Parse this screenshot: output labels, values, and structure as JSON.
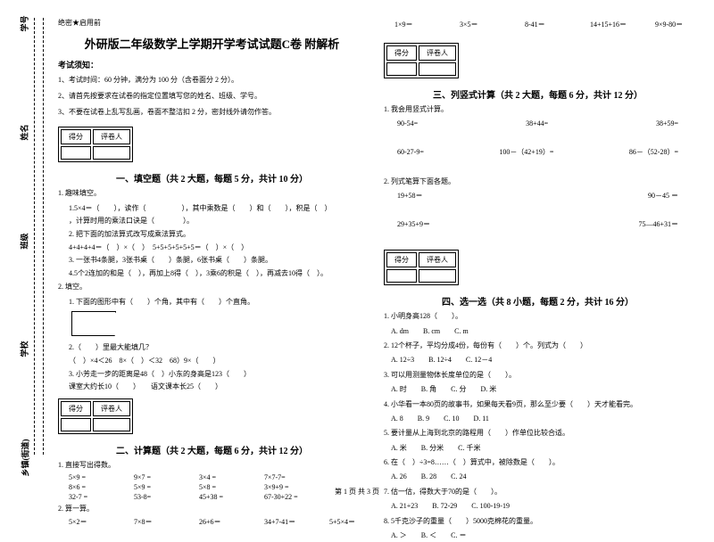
{
  "margin": {
    "labels": [
      "学号",
      "姓名",
      "班级",
      "学校",
      "乡镇(街道)"
    ],
    "side_chars": [
      "题",
      "答",
      "内",
      "线",
      "封"
    ]
  },
  "header": {
    "confidential": "绝密★启用前",
    "title": "外研版二年级数学上学期开学考试试题C卷 附解析",
    "notice_title": "考试须知：",
    "notices": [
      "1、考试时间：60 分钟，满分为 100 分（含卷面分 2 分）。",
      "2、请首先按要求在试卷的指定位置填写您的姓名、班级、学号。",
      "3、不要在试卷上乱写乱画，卷面不整洁扣 2 分，密封线外请勿作答。"
    ]
  },
  "scorebox": {
    "col1": "得分",
    "col2": "评卷人"
  },
  "section1": {
    "heading": "一、填空题（共 2 大题，每题 5 分，共计 10 分）",
    "q1": "1. 趣味填空。",
    "q1_lines": [
      "1.5×4＝（　　），读作（　　　　　），其中乘数是（　　）和（　　），积是（　）",
      "，计算时用的乘法口诀是（　　　　）。",
      "2. 把下面的加法算式改写成乘法算式。",
      "4+4+4+4＝（　）×（　）　5+5+5+5+5+5＝（　）×（　）",
      "3. 一张书4条腿，3张书桌（　　）条腿，6张书桌（　　）条腿。",
      "4.5个2连加的和是（　），再加上8得（　），3乘6的积是（　），再减去10得（　）。"
    ],
    "q2": "2. 填空。",
    "q2_line1": "1. 下面的图形中有（　　）个角，其中有（　　）个直角。",
    "q2_lines": [
      "2.（　　）里最大能填几？",
      "（　）×4＜26　8×（　）＜32　68）9×（　　）",
      "3. 小芳走一步的距离是48（　）小东的身高是123（　　）",
      "课室大约长10（　　）　　语文课本长25（　　）"
    ]
  },
  "section2": {
    "heading": "二、计算题（共 2 大题，每题 6 分，共计 12 分）",
    "q1": "1. 直接写出得数。",
    "rows": [
      [
        "5×9 =",
        "9×7 =",
        "3×4 =",
        "7×7-7="
      ],
      [
        "8×6 =",
        "5×9 =",
        "5×8 =",
        "3×9+9 ="
      ],
      [
        "32-7 =",
        "53-8=",
        "45+38 =",
        "67-30+22 ="
      ]
    ],
    "q2": "2. 算一算。",
    "row2": [
      "5×2＝",
      "7×8＝",
      "26+6＝",
      "34+7-41＝",
      "5+5×4＝"
    ]
  },
  "col2_top": {
    "row": [
      "1×9＝",
      "3×5＝",
      "8-41＝",
      "14+15+16＝",
      "9×9-80＝"
    ]
  },
  "section3": {
    "heading": "三、列竖式计算（共 2 大题，每题 6 分，共计 12 分）",
    "q1": "1. 我会用竖式计算。",
    "rows": [
      [
        "90-54=",
        "38+44=",
        "38+59="
      ],
      [
        "60-27-9=",
        "100－（42+19）=",
        "86－（52-28）="
      ]
    ],
    "q2": "2. 列式笔算下面各题。",
    "rows2": [
      [
        "19+58＝",
        "",
        "90－45 ＝"
      ],
      [
        "29+35+9＝",
        "",
        "75—46+31＝"
      ]
    ]
  },
  "section4": {
    "heading": "四、选一选（共 8 小题，每题 2 分，共计 16 分）",
    "items": [
      "1. 小明身高128（　　）。",
      "　A. dm　　B. cm　　C. m",
      "2. 12个杯子，平均分成4份，每份有（　　）个。列式为（　　）",
      "　A. 12÷3　　B. 12÷4　　C. 12－4",
      "3. 可以用测量物体长度单位的是（　　）。",
      "　A. 时　　B. 角　　C. 分　　D. 米",
      "4. 小华看一本80页的故事书，如果每天看9页，那么至少要（　　）天才能看完。",
      "　A. 8　　B. 9　　C. 10　　D. 11",
      "5. 要计量从上海到北京的路程用（　　）作单位比较合适。",
      "　A. 米　　B. 分米　　C. 千米",
      "6. 在（　）÷3=8……（　）算式中，被除数是（　　）。",
      "　A. 26　　B. 28　　C. 24",
      "7. 估一估，得数大于70的是（　　）。",
      "　A. 21+23　　B. 72-29　　C. 100-19-19",
      "8. 5千克沙子的重量（　　）5000克棉花的重量。",
      "　A. ＞　　B. ＜　　C. ＝"
    ]
  },
  "footer": "第 1 页 共 3 页"
}
